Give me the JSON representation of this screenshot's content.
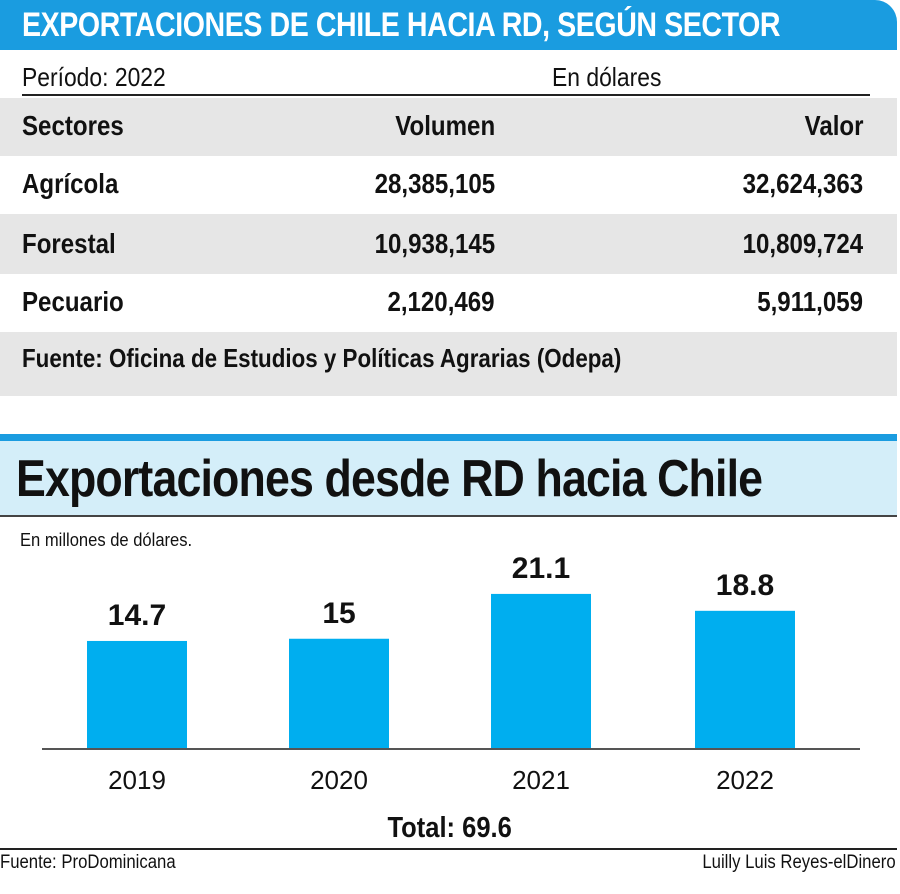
{
  "table": {
    "title": "EXPORTACIONES DE CHILE HACIA RD, SEGÚN SECTOR",
    "period": "Período: 2022",
    "unit": "En dólares",
    "headers": {
      "sector": "Sectores",
      "volume": "Volumen",
      "value": "Valor"
    },
    "rows": [
      {
        "sector": "Agrícola",
        "volume": "28,385,105",
        "value": "32,624,363"
      },
      {
        "sector": "Forestal",
        "volume": "10,938,145",
        "value": "10,809,724"
      },
      {
        "sector": "Pecuario",
        "volume": "2,120,469",
        "value": "5,911,059"
      }
    ],
    "source": "Fuente: Oficina de Estudios y Políticas Agrarias (Odepa)"
  },
  "chart_data": {
    "type": "bar",
    "title": "Exportaciones desde RD hacia Chile",
    "ylabel": "En millones de dólares.",
    "xlabel": "",
    "categories": [
      "2019",
      "2020",
      "2021",
      "2022"
    ],
    "values": [
      14.7,
      15,
      21.1,
      18.8
    ],
    "value_labels": [
      "14.7",
      "15",
      "21.1",
      "18.8"
    ],
    "ylim": [
      0,
      25
    ],
    "grid": false,
    "bar_color": "#00aeef",
    "total": "Total: 69.6"
  },
  "footer": {
    "source": "Fuente: ProDominicana",
    "credit": "Luilly Luis Reyes-elDinero"
  },
  "colors": {
    "accent": "#1a9ce0",
    "banner_light": "#d4eef9",
    "table_gray": "#e6e6e6"
  }
}
